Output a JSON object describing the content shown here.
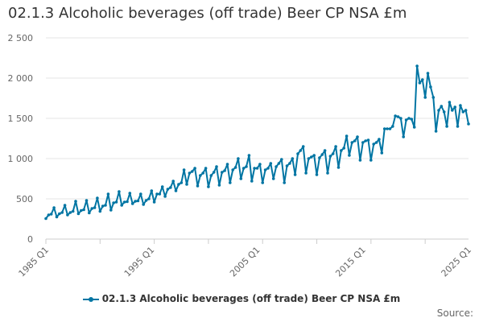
{
  "chart_data": {
    "type": "line",
    "title": "02.1.3 Alcoholic beverages (off trade) Beer CP NSA £m",
    "xlabel": "",
    "ylabel": "",
    "x_start": "1985 Q1",
    "x_end": "2025 Q1",
    "frequency": "quarterly",
    "x_tick_labels": [
      "1985 Q1",
      "1995 Q1",
      "2005 Q1",
      "2015 Q1",
      "2025 Q1"
    ],
    "y_tick_labels": [
      "0",
      "500",
      "1 000",
      "1 500",
      "2 000",
      "2 500"
    ],
    "ylim": [
      0,
      2500
    ],
    "grid": true,
    "legend_position": "bottom",
    "line_color": "#0075a3",
    "series": [
      {
        "name": "02.1.3 Alcoholic beverages (off trade) Beer CP NSA £m",
        "values": [
          255,
          300,
          310,
          390,
          275,
          315,
          330,
          420,
          300,
          330,
          345,
          470,
          315,
          355,
          365,
          480,
          325,
          380,
          390,
          510,
          345,
          410,
          420,
          560,
          360,
          450,
          460,
          590,
          420,
          460,
          465,
          570,
          440,
          470,
          475,
          560,
          430,
          480,
          500,
          600,
          460,
          560,
          560,
          650,
          530,
          620,
          640,
          720,
          600,
          680,
          700,
          860,
          680,
          820,
          840,
          880,
          660,
          790,
          820,
          880,
          650,
          790,
          830,
          900,
          670,
          830,
          850,
          930,
          700,
          860,
          890,
          1000,
          750,
          880,
          900,
          1040,
          720,
          880,
          880,
          930,
          700,
          860,
          880,
          940,
          750,
          900,
          940,
          990,
          700,
          910,
          940,
          1000,
          800,
          1060,
          1100,
          1150,
          820,
          1000,
          1020,
          1040,
          800,
          1010,
          1050,
          1100,
          820,
          1030,
          1060,
          1150,
          890,
          1100,
          1130,
          1280,
          1040,
          1200,
          1220,
          1270,
          980,
          1200,
          1220,
          1230,
          980,
          1180,
          1200,
          1240,
          1070,
          1370,
          1370,
          1370,
          1400,
          1530,
          1520,
          1500,
          1270,
          1480,
          1500,
          1490,
          1390,
          2150,
          1940,
          1980,
          1760,
          2060,
          1890,
          1760,
          1340,
          1600,
          1650,
          1580,
          1400,
          1700,
          1600,
          1640,
          1400,
          1660,
          1580,
          1600,
          1430
        ]
      }
    ]
  },
  "legend": {
    "label": "02.1.3 Alcoholic beverages (off trade) Beer CP NSA £m"
  },
  "source": {
    "label": "Source:"
  }
}
